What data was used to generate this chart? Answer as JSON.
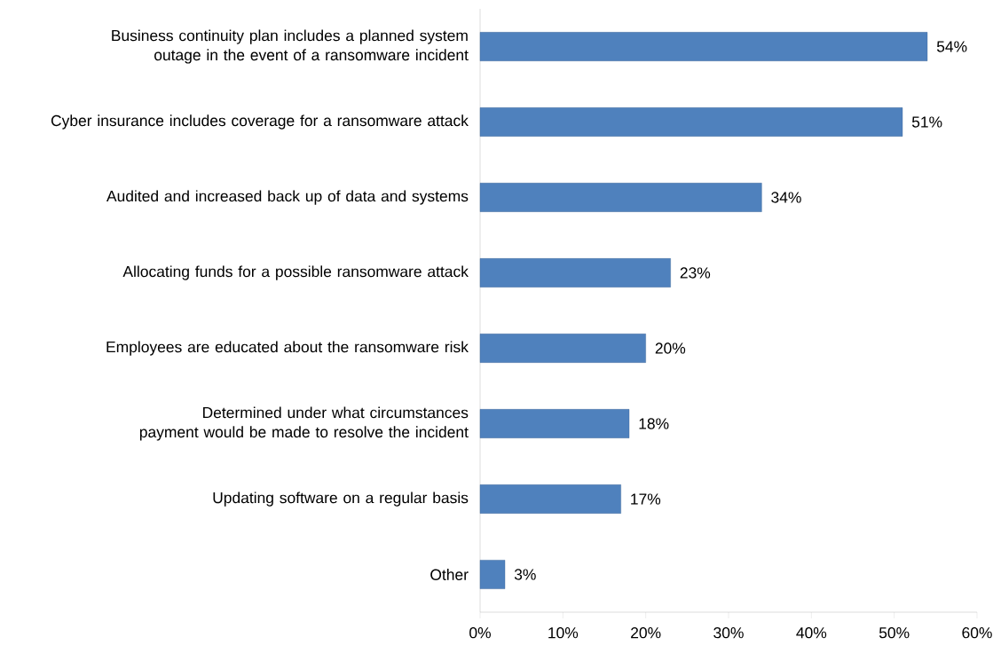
{
  "chart_data": {
    "type": "bar",
    "orientation": "horizontal",
    "categories": [
      "Business continuity plan includes a planned system outage in the event of a ransomware incident",
      "Cyber insurance includes coverage for a ransomware attack",
      "Audited and increased back up of data and systems",
      "Allocating funds for a possible ransomware attack",
      "Employees are educated about the ransomware risk",
      "Determined under what circumstances payment would be made to resolve the incident",
      "Updating software on a regular basis",
      "Other"
    ],
    "values": [
      54,
      51,
      34,
      23,
      20,
      18,
      17,
      3
    ],
    "value_labels": [
      "54%",
      "51%",
      "34%",
      "23%",
      "20%",
      "18%",
      "17%",
      "3%"
    ],
    "color": "#4f81bd",
    "xlim": [
      0,
      60
    ],
    "xticks": [
      {
        "value": 0,
        "label": "0%"
      },
      {
        "value": 10,
        "label": "10%"
      },
      {
        "value": 20,
        "label": "20%"
      },
      {
        "value": 30,
        "label": "30%"
      },
      {
        "value": 40,
        "label": "40%"
      },
      {
        "value": 50,
        "label": "50%"
      },
      {
        "value": 60,
        "label": "60%"
      }
    ]
  }
}
